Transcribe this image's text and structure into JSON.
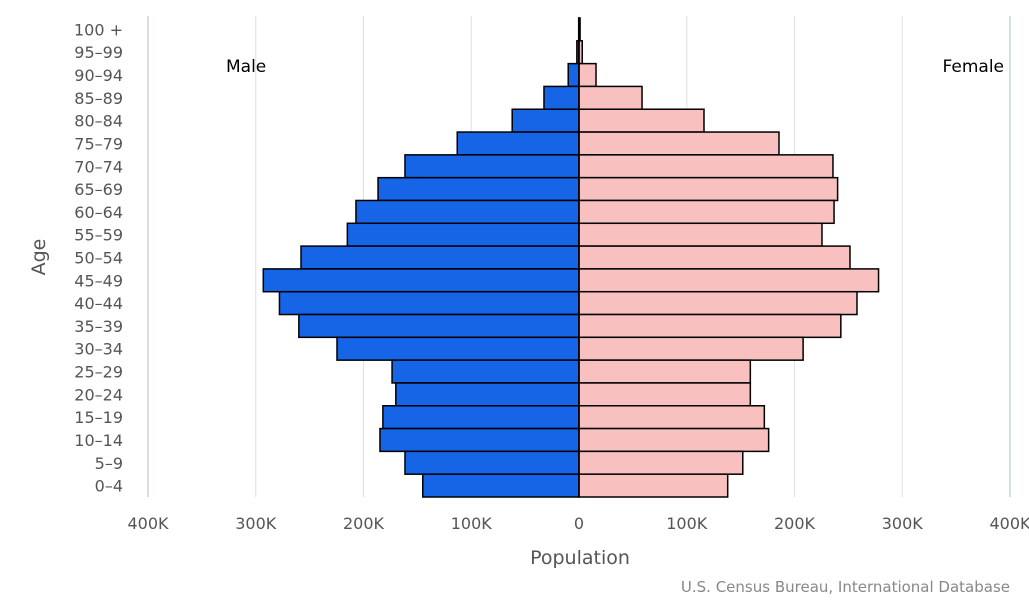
{
  "chart_data": {
    "type": "bar",
    "subtype": "population-pyramid",
    "xlabel": "Population",
    "ylabel": "Age",
    "source": "U.S. Census Bureau, International Database",
    "xlim": [
      -400000,
      400000
    ],
    "xticks": [
      "400K",
      "300K",
      "200K",
      "100K",
      "0",
      "100K",
      "200K",
      "300K",
      "400K"
    ],
    "categories": [
      "100 +",
      "95-99",
      "90-94",
      "85-89",
      "80-84",
      "75-79",
      "70-74",
      "65-69",
      "60-64",
      "55-59",
      "50-54",
      "45-49",
      "40-44",
      "35-39",
      "30-34",
      "25-29",
      "20-24",
      "15-19",
      "10-14",
      "5-9",
      "0-4"
    ],
    "series": [
      {
        "name": "Male",
        "color": "#1565e6",
        "values": [
          300,
          2000,
          10000,
          32500,
          62000,
          113000,
          161500,
          186500,
          207000,
          215000,
          258000,
          293000,
          278000,
          260000,
          224600,
          173500,
          170000,
          182000,
          184700,
          161500,
          145000
        ]
      },
      {
        "name": "Female",
        "color": "#f9c0c0",
        "values": [
          1000,
          3000,
          15800,
          58500,
          116000,
          185600,
          235700,
          240000,
          236700,
          225500,
          251500,
          278000,
          258000,
          243000,
          208000,
          159000,
          159000,
          172000,
          176000,
          152000,
          138000
        ]
      }
    ]
  }
}
